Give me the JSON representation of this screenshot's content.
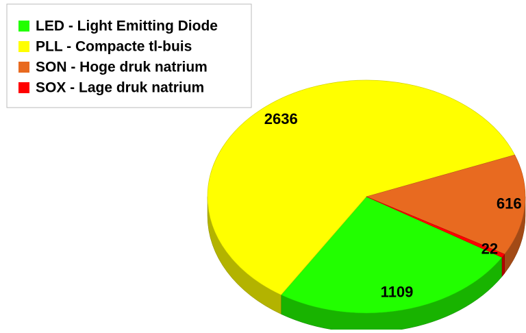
{
  "chart_data": {
    "type": "pie3d",
    "categories": [
      "LED - Light Emitting Diode",
      "PLL - Compacte tl-buis",
      "SON - Hoge druk natrium",
      "SOX - Lage druk natrium"
    ],
    "values": [
      1109,
      2636,
      616,
      22
    ],
    "colors": [
      "#22ff00",
      "#ffff00",
      "#e86a20",
      "#ff0000"
    ],
    "legend": "top-left"
  }
}
